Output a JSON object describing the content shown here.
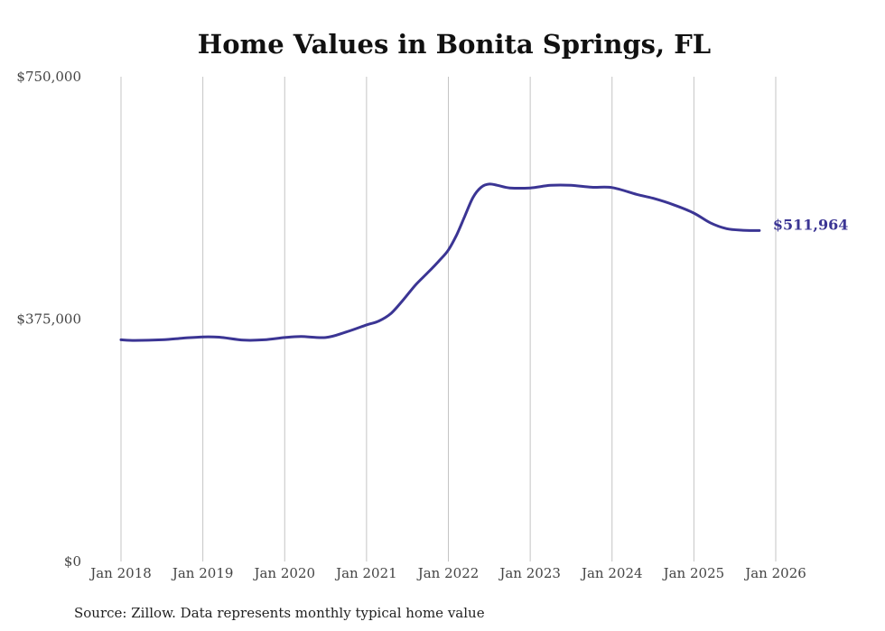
{
  "chart_data": {
    "type": "line",
    "title": "Home Values in Bonita Springs, FL",
    "xlabel": "",
    "ylabel": "",
    "source": "Source: Zillow. Data represents monthly typical home value",
    "y_ticks": [
      {
        "value": 0,
        "label": "$0"
      },
      {
        "value": 375000,
        "label": "$375,000"
      },
      {
        "value": 750000,
        "label": "$750,000"
      }
    ],
    "x_ticks": [
      {
        "value": 2018,
        "label": "Jan 2018"
      },
      {
        "value": 2019,
        "label": "Jan 2019"
      },
      {
        "value": 2020,
        "label": "Jan 2020"
      },
      {
        "value": 2021,
        "label": "Jan 2021"
      },
      {
        "value": 2022,
        "label": "Jan 2022"
      },
      {
        "value": 2023,
        "label": "Jan 2023"
      },
      {
        "value": 2024,
        "label": "Jan 2024"
      },
      {
        "value": 2025,
        "label": "Jan 2025"
      },
      {
        "value": 2026,
        "label": "Jan 2026"
      }
    ],
    "xlim": [
      2018,
      2026
    ],
    "ylim": [
      0,
      750000
    ],
    "grid": "vertical",
    "line_color": "#3b3594",
    "end_label": "$511,964",
    "series": [
      {
        "name": "Typical home value",
        "points": [
          [
            2018.0,
            343000
          ],
          [
            2018.17,
            342000
          ],
          [
            2018.5,
            343000
          ],
          [
            2018.75,
            345500
          ],
          [
            2019.0,
            347500
          ],
          [
            2019.2,
            347000
          ],
          [
            2019.5,
            342500
          ],
          [
            2019.75,
            343000
          ],
          [
            2020.0,
            346500
          ],
          [
            2020.2,
            348000
          ],
          [
            2020.5,
            346500
          ],
          [
            2020.75,
            355000
          ],
          [
            2021.0,
            366000
          ],
          [
            2021.15,
            372000
          ],
          [
            2021.3,
            384000
          ],
          [
            2021.45,
            405000
          ],
          [
            2021.6,
            428000
          ],
          [
            2021.75,
            447000
          ],
          [
            2021.9,
            467000
          ],
          [
            2022.0,
            482000
          ],
          [
            2022.1,
            505000
          ],
          [
            2022.2,
            534000
          ],
          [
            2022.3,
            563000
          ],
          [
            2022.4,
            579000
          ],
          [
            2022.5,
            584000
          ],
          [
            2022.6,
            582000
          ],
          [
            2022.75,
            578000
          ],
          [
            2023.0,
            578000
          ],
          [
            2023.25,
            582000
          ],
          [
            2023.5,
            582000
          ],
          [
            2023.75,
            579000
          ],
          [
            2024.0,
            578500
          ],
          [
            2024.3,
            568000
          ],
          [
            2024.5,
            562000
          ],
          [
            2024.75,
            552000
          ],
          [
            2025.0,
            539000
          ],
          [
            2025.2,
            524000
          ],
          [
            2025.4,
            515000
          ],
          [
            2025.6,
            512500
          ],
          [
            2025.8,
            511964
          ]
        ]
      }
    ]
  }
}
